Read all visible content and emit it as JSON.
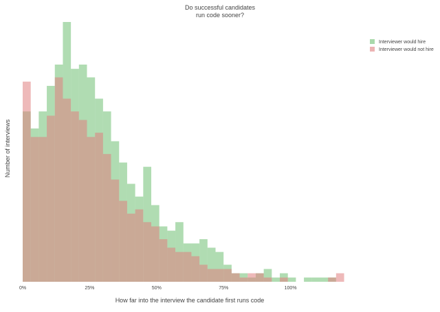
{
  "chart_data": {
    "type": "histogram",
    "title_lines": [
      "Do successful candidates",
      "run code sooner?"
    ],
    "xlabel": "How far into the interview the candidate first runs code",
    "ylabel": "Number of interviews",
    "x_ticks": [
      {
        "value": 0,
        "label": "0%"
      },
      {
        "value": 25,
        "label": "25%"
      },
      {
        "value": 50,
        "label": "50%"
      },
      {
        "value": 75,
        "label": "75%"
      },
      {
        "value": 100,
        "label": "100%"
      }
    ],
    "xlim": [
      0,
      125
    ],
    "ylim": [
      0,
      61
    ],
    "bin_width": 3,
    "bin_starts": [
      0,
      3,
      6,
      9,
      12,
      15,
      18,
      21,
      24,
      27,
      30,
      33,
      36,
      39,
      42,
      45,
      48,
      51,
      54,
      57,
      60,
      63,
      66,
      69,
      72,
      75,
      78,
      81,
      84,
      87,
      90,
      93,
      96,
      99,
      102,
      105,
      108,
      111,
      114,
      117
    ],
    "legend_position": "top-right",
    "grid": false,
    "series": [
      {
        "name": "Interviewer would hire",
        "color": "#6fbf73",
        "values": [
          40,
          36,
          40,
          46,
          51,
          61,
          50,
          51,
          48,
          43,
          40,
          33,
          28,
          23,
          20,
          27,
          18,
          13,
          12,
          14,
          9,
          9,
          10,
          8,
          7,
          4,
          2,
          2,
          1,
          2,
          3,
          1,
          2,
          1,
          0,
          1,
          1,
          1,
          1,
          0
        ]
      },
      {
        "name": "Interviewer would not hire",
        "color": "#e08080",
        "values": [
          47,
          34,
          34,
          39,
          48,
          43,
          40,
          38,
          34,
          35,
          30,
          24,
          19,
          16,
          17,
          14,
          13,
          10,
          8,
          7,
          7,
          6,
          4,
          3,
          3,
          3,
          2,
          1,
          2,
          2,
          1,
          0,
          1,
          0,
          0,
          0,
          0,
          0,
          1,
          2
        ]
      }
    ]
  }
}
